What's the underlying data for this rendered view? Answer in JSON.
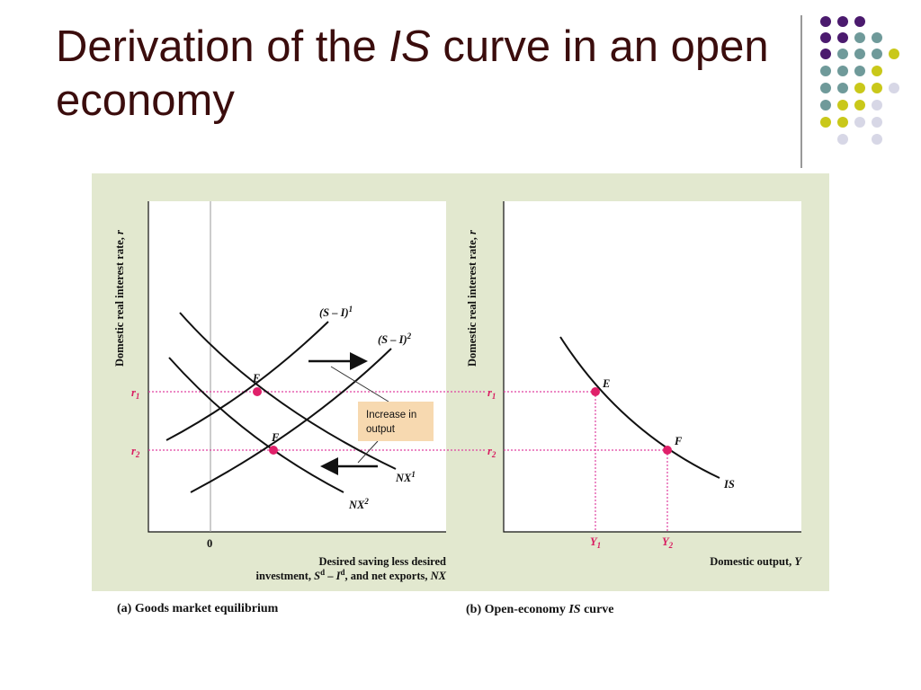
{
  "title": {
    "before": "Derivation of the ",
    "italic": "IS",
    "after": " curve in an open economy"
  },
  "panel_a": {
    "y_label": [
      "Domestic real interest rate, ",
      "r"
    ],
    "r1": [
      "r",
      "1"
    ],
    "r2": [
      "r",
      "2"
    ],
    "zero": "0",
    "si1": [
      "(S – I)",
      "1"
    ],
    "si2": [
      "(S – I)",
      "2"
    ],
    "nx1": [
      "NX",
      "1"
    ],
    "nx2": [
      "NX",
      "2"
    ],
    "point_e": "E",
    "point_f": "F",
    "callout": [
      "Increase in",
      "output"
    ],
    "x_label": [
      "Desired saving less desired",
      "investment, ",
      "S",
      "d",
      " – ",
      "I",
      "d",
      ", and net exports, ",
      "NX"
    ],
    "caption": "(a) Goods market equilibrium"
  },
  "panel_b": {
    "y_label": [
      "Domestic real interest rate, ",
      "r"
    ],
    "r1": [
      "r",
      "1"
    ],
    "r2": [
      "r",
      "2"
    ],
    "point_e": "E",
    "point_f": "F",
    "curve": "IS",
    "y1": [
      "Y",
      "1"
    ],
    "y2": [
      "Y",
      "2"
    ],
    "x_label": [
      "Domestic output, ",
      "Y"
    ],
    "caption": [
      "(b) Open-economy ",
      "IS",
      " curve"
    ]
  }
}
